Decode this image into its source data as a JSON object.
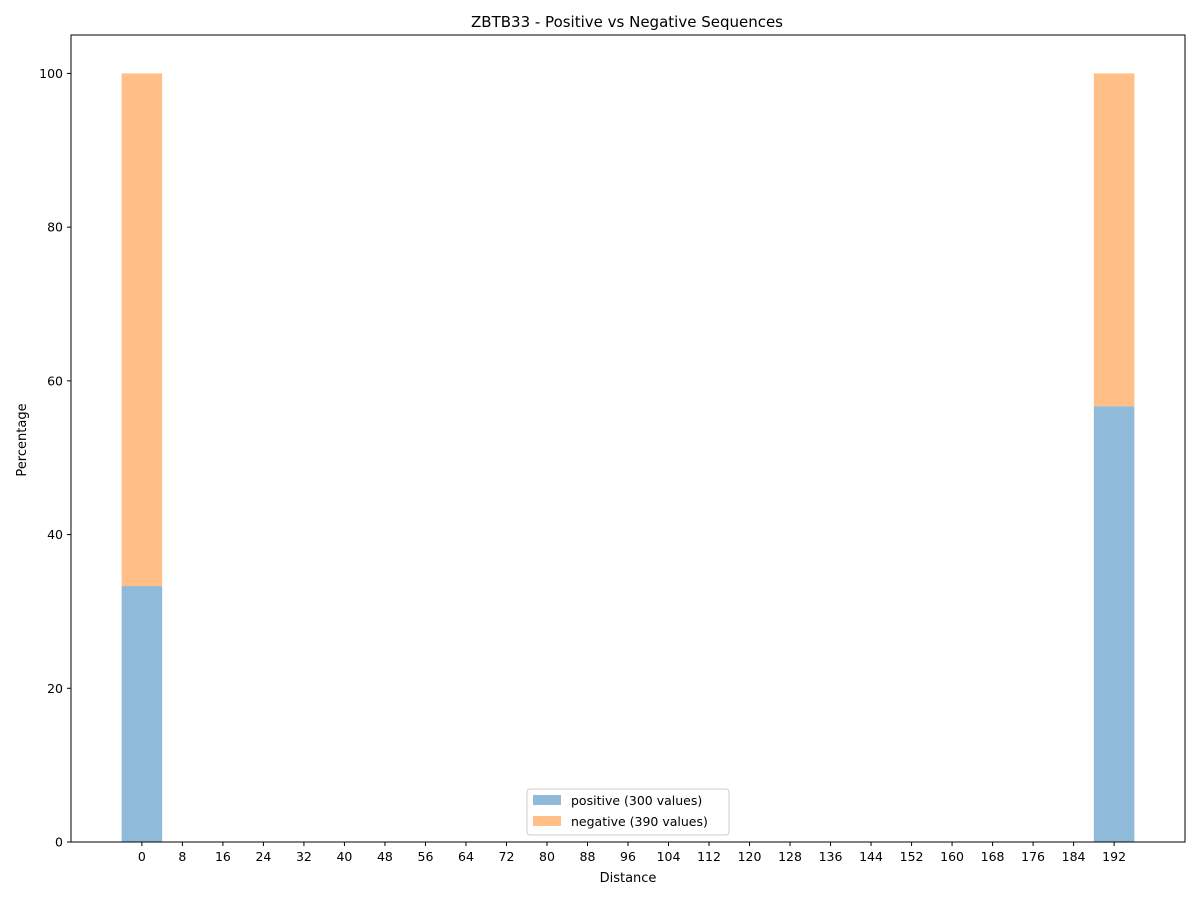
{
  "chart_data": {
    "type": "bar",
    "stacked": true,
    "title": "ZBTB33 - Positive vs Negative Sequences",
    "xlabel": "Distance",
    "ylabel": "Percentage",
    "x": [
      0,
      192
    ],
    "series": [
      {
        "name": "positive (300 values)",
        "values": [
          33.3,
          56.7
        ],
        "color": "#8fbad9"
      },
      {
        "name": "negative (390 values)",
        "values": [
          66.7,
          43.3
        ],
        "color": "#ffbf86"
      }
    ],
    "xticks": [
      0,
      8,
      16,
      24,
      32,
      40,
      48,
      56,
      64,
      72,
      80,
      88,
      96,
      104,
      112,
      120,
      128,
      136,
      144,
      152,
      160,
      168,
      176,
      184,
      192
    ],
    "yticks": [
      0,
      20,
      40,
      60,
      80,
      100
    ],
    "xlim": [
      -14,
      206
    ],
    "ylim": [
      0,
      105
    ],
    "bar_width": 8,
    "grid": false,
    "legend_position": "bottom-center"
  }
}
